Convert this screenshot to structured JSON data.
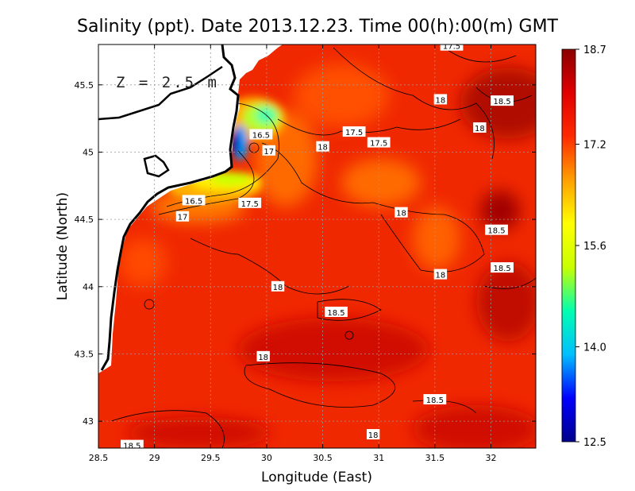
{
  "chart_data": {
    "type": "heatmap",
    "title": "Salinity (ppt). Date 2013.12.23. Time 00(h):00(m) GMT",
    "xlabel": "Longitude (East)",
    "ylabel": "Latitude (North)",
    "xlim": [
      28.5,
      32.4
    ],
    "ylim": [
      42.8,
      45.8
    ],
    "xticks": [
      28.5,
      29,
      29.5,
      30,
      30.5,
      31,
      31.5,
      32
    ],
    "xtick_labels": [
      "28.5",
      "29",
      "29.5",
      "30",
      "30.5",
      "31",
      "31.5",
      "32"
    ],
    "yticks": [
      43,
      43.5,
      44,
      44.5,
      45,
      45.5
    ],
    "ytick_labels": [
      "43",
      "43.5",
      "44",
      "44.5",
      "45",
      "45.5"
    ],
    "grid": true,
    "depth_annotation": "Z = 2.5 m",
    "colorbar": {
      "min": 12.5,
      "max": 18.7,
      "ticks": [
        18.7,
        17.2,
        15.6,
        14.0,
        12.5
      ],
      "tick_labels": [
        "18.7",
        "17.2",
        "15.6",
        "14.0",
        "12.5"
      ],
      "colors": [
        "#00008b",
        "#0000ff",
        "#00bfff",
        "#00ffb0",
        "#c8ff00",
        "#ffff00",
        "#ffa000",
        "#ff2a00",
        "#e00000",
        "#8b0000"
      ]
    },
    "contour_labels": [
      {
        "text": "17.5",
        "lon": 31.65,
        "lat": 45.79
      },
      {
        "text": "18",
        "lon": 31.55,
        "lat": 45.39
      },
      {
        "text": "18.5",
        "lon": 32.1,
        "lat": 45.38
      },
      {
        "text": "18",
        "lon": 31.9,
        "lat": 45.18
      },
      {
        "text": "16.5",
        "lon": 29.95,
        "lat": 45.13
      },
      {
        "text": "17",
        "lon": 30.02,
        "lat": 45.01
      },
      {
        "text": "17.5",
        "lon": 30.78,
        "lat": 45.15
      },
      {
        "text": "18",
        "lon": 30.5,
        "lat": 45.04
      },
      {
        "text": "17.5",
        "lon": 31.0,
        "lat": 45.07
      },
      {
        "text": "16.5",
        "lon": 29.35,
        "lat": 44.64
      },
      {
        "text": "17.5",
        "lon": 29.85,
        "lat": 44.62
      },
      {
        "text": "17",
        "lon": 29.25,
        "lat": 44.52
      },
      {
        "text": "18",
        "lon": 31.2,
        "lat": 44.55
      },
      {
        "text": "18.5",
        "lon": 32.05,
        "lat": 44.42
      },
      {
        "text": "18.5",
        "lon": 32.1,
        "lat": 44.14
      },
      {
        "text": "18",
        "lon": 31.55,
        "lat": 44.09
      },
      {
        "text": "18",
        "lon": 30.1,
        "lat": 44.0
      },
      {
        "text": "18.5",
        "lon": 30.62,
        "lat": 43.81
      },
      {
        "text": "18",
        "lon": 29.97,
        "lat": 43.48
      },
      {
        "text": "18.5",
        "lon": 31.5,
        "lat": 43.16
      },
      {
        "text": "18",
        "lon": 30.95,
        "lat": 42.9
      },
      {
        "text": "18.5",
        "lon": 28.8,
        "lat": 42.82
      }
    ],
    "field_features": [
      {
        "kind": "fresh-plume-core",
        "lon": 29.72,
        "lat": 45.05,
        "value": 12.7
      },
      {
        "kind": "plume-mid",
        "lon": 29.95,
        "lat": 45.25,
        "value": 15.6
      },
      {
        "kind": "plume-south",
        "lon": 29.75,
        "lat": 44.78,
        "value": 16.3
      },
      {
        "kind": "high-salinity-east",
        "lon": 32.2,
        "lat": 45.35,
        "value": 18.6
      },
      {
        "kind": "high-salinity-center",
        "lon": 30.8,
        "lat": 43.65,
        "value": 18.55
      },
      {
        "kind": "high-salinity-southeast",
        "lon": 32.0,
        "lat": 43.8,
        "value": 18.55
      }
    ]
  }
}
